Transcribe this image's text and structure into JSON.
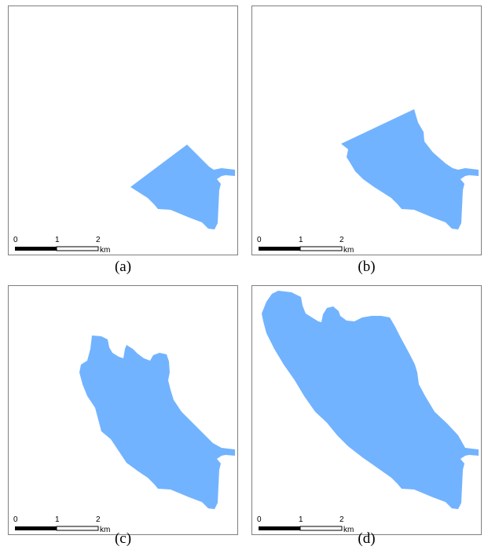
{
  "panels": [
    {
      "caption": "(a)",
      "scale_bar": {
        "ticks": [
          "0",
          "1",
          "2"
        ],
        "unit": "km"
      }
    },
    {
      "caption": "(b)",
      "scale_bar": {
        "ticks": [
          "0",
          "1",
          "2"
        ],
        "unit": "km"
      }
    },
    {
      "caption": "(c)",
      "scale_bar": {
        "ticks": [
          "0",
          "1",
          "2"
        ],
        "unit": "km"
      }
    },
    {
      "caption": "(d)",
      "scale_bar": {
        "ticks": [
          "0",
          "1",
          "2"
        ],
        "unit": "km"
      }
    }
  ],
  "colors": {
    "region_fill": "#72b3ff",
    "border": "#7f7f7f"
  }
}
